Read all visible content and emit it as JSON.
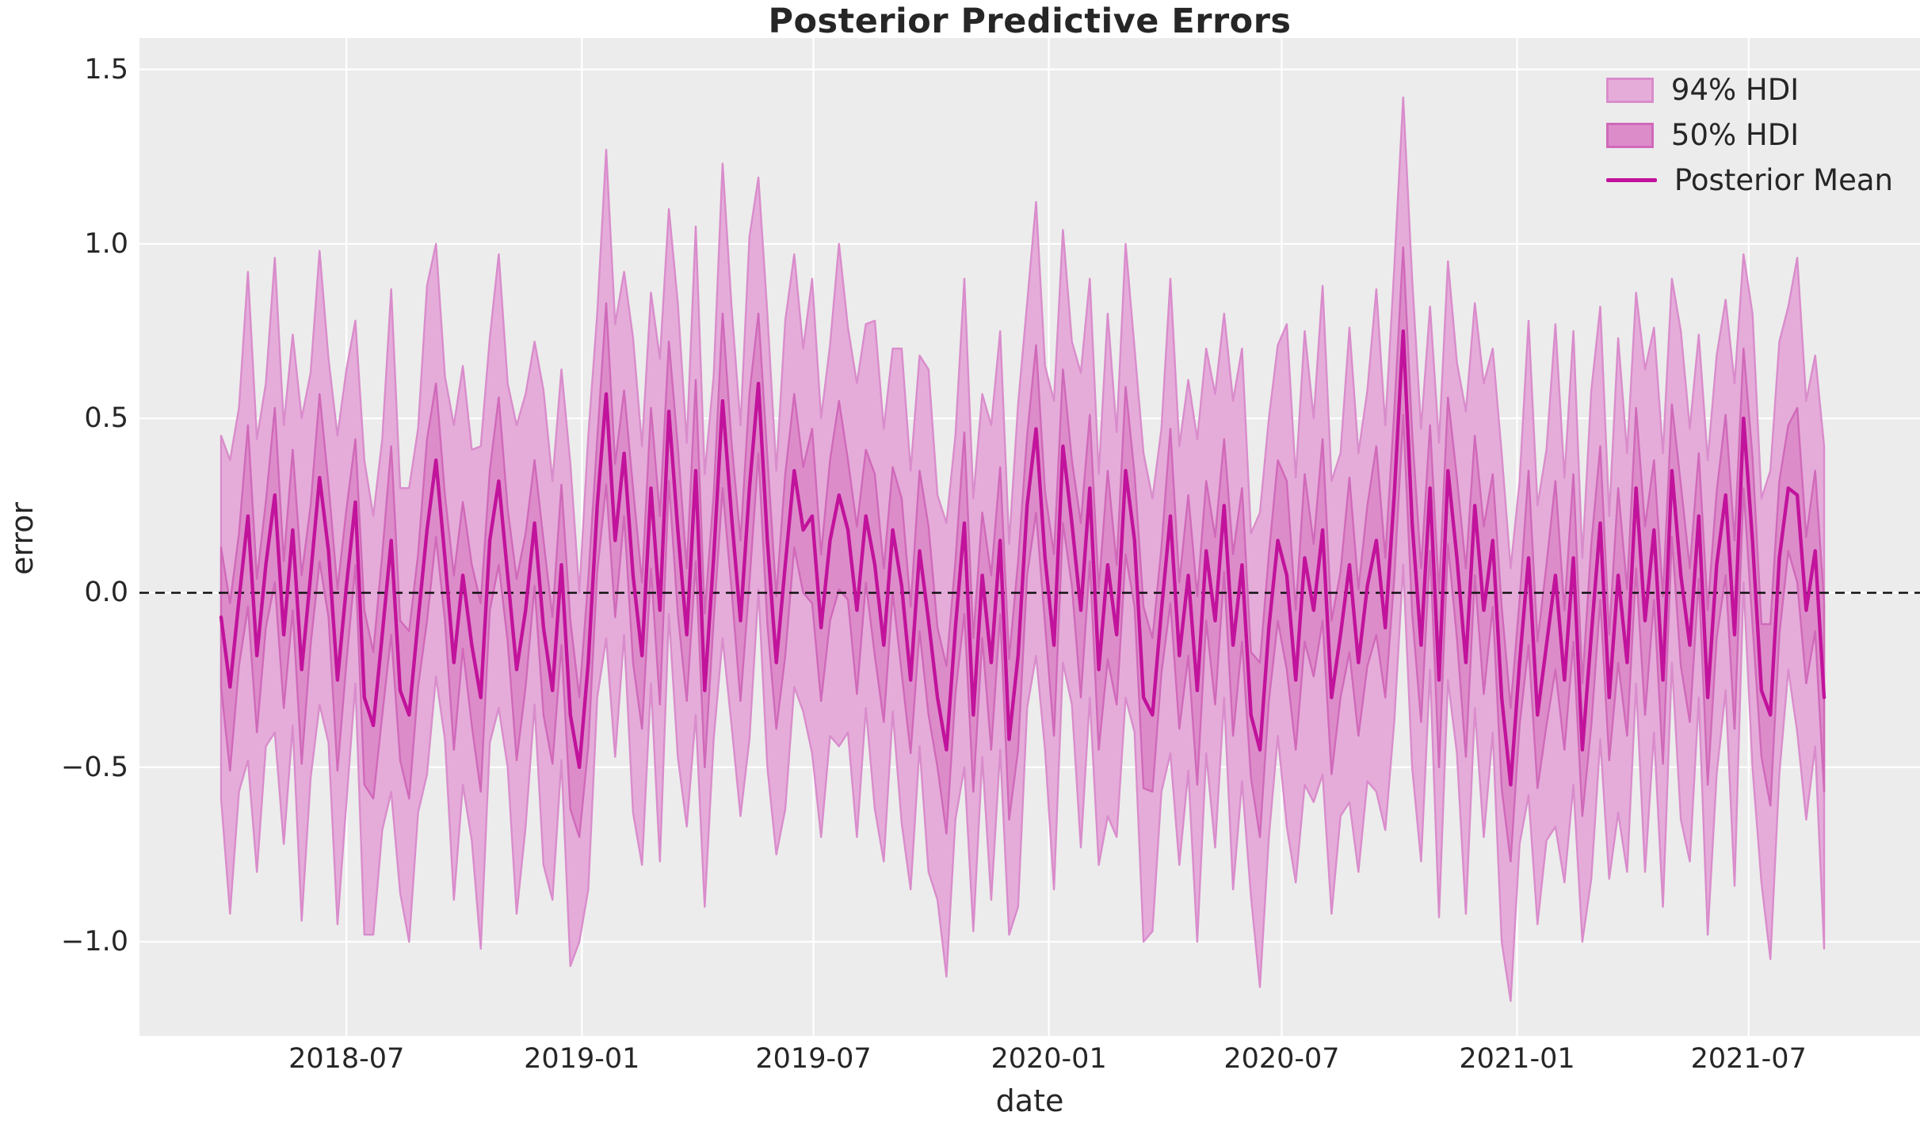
{
  "chart_data": {
    "type": "line",
    "title": "Posterior Predictive Errors",
    "xlabel": "date",
    "ylabel": "error",
    "x_start_date": "2018-03-25",
    "x_freq": "weekly",
    "n_points": 180,
    "ylim": [
      -1.27,
      1.59
    ],
    "grid": "on",
    "legend_position": "upper right",
    "y_ticks": {
      "values": [
        1.5,
        1.0,
        0.5,
        0.0,
        -0.5,
        -1.0
      ],
      "labels": [
        "1.5",
        "1.0",
        "0.5",
        "0.0",
        "−0.5",
        "−1.0"
      ]
    },
    "x_ticks": {
      "dates": [
        "2018-07-01",
        "2019-01-01",
        "2019-07-01",
        "2020-01-01",
        "2020-07-01",
        "2021-01-01",
        "2021-07-01"
      ],
      "labels": [
        "2018-07",
        "2019-01",
        "2019-07",
        "2020-01",
        "2020-07",
        "2021-01",
        "2021-07"
      ]
    },
    "zero_line": {
      "y": 0.0,
      "style": "dashed",
      "color": "#111111"
    },
    "colors": {
      "band94_fill": "#e5acda",
      "band94_edge": "#d98ccb",
      "band50_fill": "#dd8cca",
      "band50_edge": "#d069b9",
      "mean_line": "#c1139b",
      "plot_bg": "#ececec",
      "grid": "#ffffff",
      "text": "#262626"
    },
    "series": [
      {
        "name": "Posterior Mean",
        "role": "mean",
        "values": [
          -0.07,
          -0.27,
          -0.02,
          0.22,
          -0.18,
          0.08,
          0.28,
          -0.12,
          0.18,
          -0.22,
          0.05,
          0.33,
          0.12,
          -0.25,
          0.02,
          0.26,
          -0.3,
          -0.38,
          -0.12,
          0.15,
          -0.28,
          -0.35,
          -0.08,
          0.18,
          0.38,
          0.1,
          -0.2,
          0.05,
          -0.15,
          -0.3,
          0.15,
          0.32,
          0.05,
          -0.22,
          -0.05,
          0.2,
          -0.1,
          -0.28,
          0.08,
          -0.35,
          -0.5,
          -0.2,
          0.25,
          0.57,
          0.15,
          0.4,
          0.05,
          -0.18,
          0.3,
          -0.05,
          0.52,
          0.18,
          -0.12,
          0.35,
          -0.28,
          0.1,
          0.55,
          0.22,
          -0.08,
          0.3,
          0.6,
          0.15,
          -0.2,
          0.08,
          0.35,
          0.18,
          0.22,
          -0.1,
          0.15,
          0.28,
          0.18,
          -0.05,
          0.22,
          0.08,
          -0.15,
          0.18,
          0.02,
          -0.25,
          0.12,
          -0.08,
          -0.3,
          -0.45,
          -0.1,
          0.2,
          -0.35,
          0.05,
          -0.2,
          0.15,
          -0.42,
          -0.18,
          0.25,
          0.47,
          0.1,
          -0.15,
          0.42,
          0.2,
          -0.05,
          0.3,
          -0.22,
          0.08,
          -0.12,
          0.35,
          0.15,
          -0.3,
          -0.35,
          -0.05,
          0.22,
          -0.18,
          0.05,
          -0.28,
          0.12,
          -0.08,
          0.25,
          -0.15,
          0.08,
          -0.35,
          -0.45,
          -0.1,
          0.15,
          0.05,
          -0.25,
          0.1,
          -0.05,
          0.18,
          -0.3,
          -0.12,
          0.08,
          -0.2,
          0.02,
          0.15,
          -0.1,
          0.28,
          0.75,
          0.2,
          -0.15,
          0.3,
          -0.25,
          0.35,
          0.1,
          -0.2,
          0.25,
          -0.05,
          0.15,
          -0.3,
          -0.55,
          -0.2,
          0.1,
          -0.35,
          -0.15,
          0.05,
          -0.25,
          0.1,
          -0.45,
          -0.12,
          0.2,
          -0.3,
          0.05,
          -0.2,
          0.3,
          -0.08,
          0.18,
          -0.25,
          0.35,
          0.05,
          -0.15,
          0.22,
          -0.3,
          0.08,
          0.28,
          -0.12,
          0.5,
          0.15,
          -0.28,
          -0.35,
          0.1,
          0.3,
          0.28,
          -0.05,
          0.12,
          -0.3
        ]
      },
      {
        "name": "50% HDI",
        "role": "band",
        "halfwidths": [
          0.2,
          0.24,
          0.19,
          0.26,
          0.22,
          0.18,
          0.25,
          0.21,
          0.23,
          0.27,
          0.2,
          0.24,
          0.19,
          0.26,
          0.22,
          0.18,
          0.25,
          0.21,
          0.23,
          0.27,
          0.2,
          0.24,
          0.19,
          0.26,
          0.22,
          0.18,
          0.25,
          0.21,
          0.23,
          0.27,
          0.2,
          0.24,
          0.19,
          0.26,
          0.22,
          0.18,
          0.25,
          0.21,
          0.23,
          0.27,
          0.2,
          0.24,
          0.19,
          0.26,
          0.22,
          0.18,
          0.25,
          0.21,
          0.23,
          0.27,
          0.2,
          0.24,
          0.19,
          0.26,
          0.22,
          0.18,
          0.25,
          0.21,
          0.23,
          0.27,
          0.2,
          0.24,
          0.19,
          0.26,
          0.22,
          0.18,
          0.25,
          0.21,
          0.23,
          0.27,
          0.2,
          0.24,
          0.19,
          0.26,
          0.22,
          0.18,
          0.25,
          0.21,
          0.23,
          0.27,
          0.2,
          0.24,
          0.19,
          0.26,
          0.22,
          0.18,
          0.25,
          0.21,
          0.23,
          0.27,
          0.2,
          0.24,
          0.19,
          0.26,
          0.22,
          0.18,
          0.25,
          0.21,
          0.23,
          0.27,
          0.2,
          0.24,
          0.19,
          0.26,
          0.22,
          0.18,
          0.25,
          0.21,
          0.23,
          0.27,
          0.2,
          0.24,
          0.19,
          0.26,
          0.22,
          0.18,
          0.25,
          0.21,
          0.23,
          0.27,
          0.2,
          0.24,
          0.19,
          0.26,
          0.22,
          0.18,
          0.25,
          0.21,
          0.23,
          0.27,
          0.2,
          0.24,
          0.24,
          0.26,
          0.22,
          0.18,
          0.25,
          0.21,
          0.23,
          0.27,
          0.2,
          0.24,
          0.19,
          0.26,
          0.22,
          0.18,
          0.25,
          0.21,
          0.23,
          0.27,
          0.2,
          0.24,
          0.19,
          0.26,
          0.22,
          0.18,
          0.25,
          0.21,
          0.23,
          0.27,
          0.2,
          0.24,
          0.19,
          0.26,
          0.22,
          0.18,
          0.25,
          0.21,
          0.23,
          0.27,
          0.2,
          0.24,
          0.19,
          0.26,
          0.22,
          0.18,
          0.25,
          0.21,
          0.23,
          0.27
        ]
      },
      {
        "name": "94% HDI",
        "role": "band",
        "halfwidths": [
          0.52,
          0.65,
          0.55,
          0.7,
          0.62,
          0.52,
          0.68,
          0.6,
          0.56,
          0.72,
          0.58,
          0.65,
          0.55,
          0.7,
          0.62,
          0.52,
          0.68,
          0.6,
          0.56,
          0.72,
          0.58,
          0.65,
          0.55,
          0.7,
          0.62,
          0.52,
          0.68,
          0.6,
          0.56,
          0.72,
          0.58,
          0.65,
          0.55,
          0.7,
          0.62,
          0.52,
          0.68,
          0.6,
          0.56,
          0.72,
          0.5,
          0.65,
          0.55,
          0.7,
          0.62,
          0.52,
          0.68,
          0.6,
          0.56,
          0.72,
          0.58,
          0.65,
          0.55,
          0.7,
          0.62,
          0.52,
          0.68,
          0.6,
          0.56,
          0.72,
          0.59,
          0.65,
          0.55,
          0.7,
          0.62,
          0.52,
          0.68,
          0.6,
          0.56,
          0.72,
          0.58,
          0.65,
          0.55,
          0.7,
          0.62,
          0.52,
          0.68,
          0.6,
          0.56,
          0.72,
          0.58,
          0.65,
          0.55,
          0.7,
          0.62,
          0.52,
          0.68,
          0.6,
          0.56,
          0.72,
          0.58,
          0.65,
          0.55,
          0.7,
          0.62,
          0.52,
          0.68,
          0.6,
          0.56,
          0.72,
          0.58,
          0.65,
          0.55,
          0.7,
          0.62,
          0.52,
          0.68,
          0.6,
          0.56,
          0.72,
          0.58,
          0.65,
          0.55,
          0.7,
          0.62,
          0.52,
          0.68,
          0.6,
          0.56,
          0.72,
          0.58,
          0.65,
          0.55,
          0.7,
          0.62,
          0.52,
          0.68,
          0.6,
          0.56,
          0.72,
          0.58,
          0.65,
          0.67,
          0.7,
          0.62,
          0.52,
          0.68,
          0.6,
          0.56,
          0.72,
          0.58,
          0.65,
          0.55,
          0.7,
          0.62,
          0.52,
          0.68,
          0.6,
          0.56,
          0.72,
          0.58,
          0.65,
          0.55,
          0.7,
          0.62,
          0.52,
          0.68,
          0.6,
          0.56,
          0.72,
          0.58,
          0.65,
          0.55,
          0.7,
          0.62,
          0.52,
          0.68,
          0.6,
          0.56,
          0.72,
          0.47,
          0.65,
          0.55,
          0.7,
          0.62,
          0.52,
          0.68,
          0.6,
          0.56,
          0.72
        ]
      }
    ]
  },
  "legend": {
    "items": [
      {
        "label": "94% HDI",
        "swatch": "patch-light"
      },
      {
        "label": "50% HDI",
        "swatch": "patch-dark"
      },
      {
        "label": "Posterior Mean",
        "swatch": "line"
      }
    ]
  }
}
